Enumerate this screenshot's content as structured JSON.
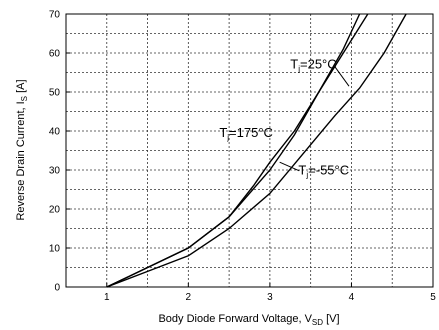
{
  "chart_data": {
    "type": "line",
    "xlabel": {
      "main": "Body Diode Forward Voltage, V",
      "sub": "SD",
      "unit": " [V]"
    },
    "ylabel": {
      "main": "Reverse Drain Current, I",
      "sub": "S",
      "unit": " [A]"
    },
    "xlim": [
      0.5,
      5
    ],
    "ylim": [
      0,
      70
    ],
    "xticks": [
      "1",
      "2",
      "3",
      "4",
      "5"
    ],
    "yticks": [
      "0",
      "10",
      "20",
      "30",
      "40",
      "50",
      "60",
      "70"
    ],
    "grid": true,
    "series": [
      {
        "name": "Tj=25°C",
        "label_main": "T",
        "label_sub": "j",
        "label_rest": "=25°C",
        "x": [
          1.0,
          1.5,
          2.0,
          2.5,
          3.0,
          3.3,
          3.6,
          3.9,
          4.2
        ],
        "y": [
          0,
          5,
          10,
          18,
          30,
          39,
          50,
          60,
          70
        ]
      },
      {
        "name": "Tj=175°C",
        "label_main": "T",
        "label_sub": "j",
        "label_rest": "=175°C",
        "x": [
          1.0,
          1.5,
          2.0,
          2.5,
          2.8,
          3.0,
          3.3,
          3.6,
          3.9,
          4.1
        ],
        "y": [
          0,
          5,
          10,
          18,
          26,
          32,
          40,
          50,
          61,
          70
        ]
      },
      {
        "name": "Tj=-55°C",
        "label_main": "T",
        "label_sub": "j",
        "label_rest": "=-55°C",
        "x": [
          1.0,
          1.5,
          2.0,
          2.5,
          3.0,
          3.4,
          3.8,
          4.1,
          4.4,
          4.67
        ],
        "y": [
          0,
          4,
          8,
          15,
          24,
          34,
          44,
          51,
          60,
          70
        ]
      }
    ]
  }
}
